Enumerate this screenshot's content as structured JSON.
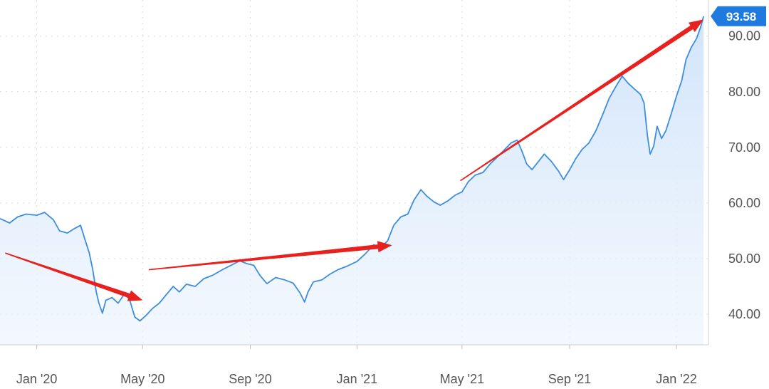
{
  "chart_data": {
    "type": "area",
    "y_ticks": [
      {
        "value": 40,
        "label": "40.00"
      },
      {
        "value": 50,
        "label": "50.00"
      },
      {
        "value": 60,
        "label": "60.00"
      },
      {
        "value": 70,
        "label": "70.00"
      },
      {
        "value": 80,
        "label": "80.00"
      },
      {
        "value": 90,
        "label": "90.00"
      }
    ],
    "x_ticks": [
      {
        "date": "2020-01-01",
        "label": "Jan '20"
      },
      {
        "date": "2020-05-01",
        "label": "May '20"
      },
      {
        "date": "2020-09-01",
        "label": "Sep '20"
      },
      {
        "date": "2021-01-01",
        "label": "Jan '21"
      },
      {
        "date": "2021-05-01",
        "label": "May '21"
      },
      {
        "date": "2021-09-01",
        "label": "Sep '21"
      },
      {
        "date": "2022-01-01",
        "label": "Jan '22"
      }
    ],
    "x_range": [
      "2019-11-20",
      "2022-02-05"
    ],
    "y_range": [
      34.5,
      96.5
    ],
    "last_price": {
      "value": 93.58,
      "label": "93.58"
    },
    "grid": "dotted",
    "series": [
      {
        "color": "#3d8ee0",
        "fill": "#d6e8fb",
        "points": [
          [
            "2019-11-20",
            57.2
          ],
          [
            "2019-12-01",
            56.4
          ],
          [
            "2019-12-10",
            57.5
          ],
          [
            "2019-12-20",
            58.0
          ],
          [
            "2020-01-01",
            57.8
          ],
          [
            "2020-01-10",
            58.3
          ],
          [
            "2020-01-20",
            57.0
          ],
          [
            "2020-01-27",
            55.0
          ],
          [
            "2020-02-05",
            54.6
          ],
          [
            "2020-02-12",
            55.3
          ],
          [
            "2020-02-20",
            56.0
          ],
          [
            "2020-02-25",
            53.5
          ],
          [
            "2020-03-01",
            51.0
          ],
          [
            "2020-03-05",
            48.0
          ],
          [
            "2020-03-09",
            44.0
          ],
          [
            "2020-03-12",
            42.0
          ],
          [
            "2020-03-16",
            40.2
          ],
          [
            "2020-03-20",
            42.5
          ],
          [
            "2020-03-27",
            43.0
          ],
          [
            "2020-04-03",
            42.0
          ],
          [
            "2020-04-10",
            43.6
          ],
          [
            "2020-04-16",
            42.7
          ],
          [
            "2020-04-22",
            39.5
          ],
          [
            "2020-04-28",
            38.8
          ],
          [
            "2020-05-05",
            39.8
          ],
          [
            "2020-05-12",
            41.0
          ],
          [
            "2020-05-20",
            42.0
          ],
          [
            "2020-05-28",
            43.5
          ],
          [
            "2020-06-05",
            45.0
          ],
          [
            "2020-06-12",
            44.0
          ],
          [
            "2020-06-20",
            45.4
          ],
          [
            "2020-06-30",
            45.0
          ],
          [
            "2020-07-10",
            46.4
          ],
          [
            "2020-07-20",
            47.0
          ],
          [
            "2020-07-31",
            48.0
          ],
          [
            "2020-08-10",
            48.8
          ],
          [
            "2020-08-20",
            49.6
          ],
          [
            "2020-08-28",
            49.1
          ],
          [
            "2020-09-05",
            48.8
          ],
          [
            "2020-09-12",
            47.0
          ],
          [
            "2020-09-20",
            45.5
          ],
          [
            "2020-09-30",
            46.6
          ],
          [
            "2020-10-10",
            46.2
          ],
          [
            "2020-10-20",
            45.6
          ],
          [
            "2020-10-28",
            43.8
          ],
          [
            "2020-11-02",
            42.2
          ],
          [
            "2020-11-06",
            44.0
          ],
          [
            "2020-11-12",
            45.8
          ],
          [
            "2020-11-22",
            46.2
          ],
          [
            "2020-12-01",
            47.2
          ],
          [
            "2020-12-10",
            48.0
          ],
          [
            "2020-12-20",
            48.6
          ],
          [
            "2021-01-01",
            49.5
          ],
          [
            "2021-01-10",
            50.8
          ],
          [
            "2021-01-20",
            52.5
          ],
          [
            "2021-01-28",
            52.0
          ],
          [
            "2021-02-05",
            53.2
          ],
          [
            "2021-02-12",
            56.0
          ],
          [
            "2021-02-20",
            57.5
          ],
          [
            "2021-02-28",
            58.0
          ],
          [
            "2021-03-07",
            60.5
          ],
          [
            "2021-03-15",
            62.4
          ],
          [
            "2021-03-22",
            61.2
          ],
          [
            "2021-03-30",
            60.2
          ],
          [
            "2021-04-06",
            59.6
          ],
          [
            "2021-04-15",
            60.4
          ],
          [
            "2021-04-23",
            61.4
          ],
          [
            "2021-05-01",
            62.0
          ],
          [
            "2021-05-08",
            63.8
          ],
          [
            "2021-05-16",
            65.0
          ],
          [
            "2021-05-25",
            65.5
          ],
          [
            "2021-06-02",
            67.0
          ],
          [
            "2021-06-10",
            68.2
          ],
          [
            "2021-06-18",
            69.5
          ],
          [
            "2021-06-26",
            70.8
          ],
          [
            "2021-07-03",
            71.3
          ],
          [
            "2021-07-08",
            69.5
          ],
          [
            "2021-07-14",
            67.0
          ],
          [
            "2021-07-20",
            66.0
          ],
          [
            "2021-07-26",
            67.2
          ],
          [
            "2021-08-03",
            68.8
          ],
          [
            "2021-08-11",
            67.5
          ],
          [
            "2021-08-19",
            65.8
          ],
          [
            "2021-08-25",
            64.2
          ],
          [
            "2021-09-01",
            66.0
          ],
          [
            "2021-09-08",
            68.0
          ],
          [
            "2021-09-15",
            69.6
          ],
          [
            "2021-09-23",
            70.8
          ],
          [
            "2021-10-01",
            73.0
          ],
          [
            "2021-10-09",
            76.0
          ],
          [
            "2021-10-16",
            78.8
          ],
          [
            "2021-10-24",
            81.0
          ],
          [
            "2021-10-31",
            82.8
          ],
          [
            "2021-11-07",
            81.5
          ],
          [
            "2021-11-14",
            80.5
          ],
          [
            "2021-11-21",
            79.5
          ],
          [
            "2021-11-25",
            78.0
          ],
          [
            "2021-11-29",
            72.0
          ],
          [
            "2021-12-02",
            68.8
          ],
          [
            "2021-12-06",
            70.2
          ],
          [
            "2021-12-10",
            73.8
          ],
          [
            "2021-12-15",
            71.6
          ],
          [
            "2021-12-20",
            73.0
          ],
          [
            "2021-12-26",
            76.0
          ],
          [
            "2022-01-01",
            79.2
          ],
          [
            "2022-01-07",
            82.0
          ],
          [
            "2022-01-12",
            85.8
          ],
          [
            "2022-01-18",
            88.0
          ],
          [
            "2022-01-24",
            89.6
          ],
          [
            "2022-01-29",
            91.8
          ],
          [
            "2022-02-01",
            93.58
          ]
        ]
      }
    ],
    "annotations": [
      {
        "type": "arrow",
        "color": "#e8211f",
        "from": [
          "2019-11-26",
          51.0
        ],
        "to": [
          "2020-05-01",
          42.5
        ]
      },
      {
        "type": "arrow",
        "color": "#e8211f",
        "from": [
          "2020-05-08",
          48.0
        ],
        "to": [
          "2021-02-10",
          52.4
        ]
      },
      {
        "type": "arrow",
        "color": "#e8211f",
        "from": [
          "2021-04-29",
          64.0
        ],
        "to": [
          "2022-02-01",
          93.0
        ]
      }
    ]
  }
}
